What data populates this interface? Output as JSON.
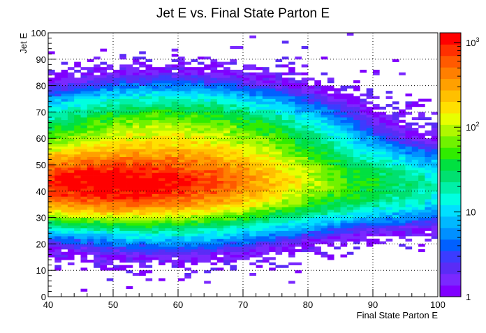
{
  "chart_data": {
    "type": "heatmap",
    "title": "Jet E vs. Final State Parton E",
    "xlabel": "Final State Parton E",
    "ylabel": "Jet E",
    "xlim": [
      40,
      100
    ],
    "ylim": [
      0,
      100
    ],
    "x_ticks": [
      "40",
      "50",
      "60",
      "70",
      "80",
      "90",
      "100"
    ],
    "y_ticks": [
      "0",
      "10",
      "20",
      "30",
      "40",
      "50",
      "60",
      "70",
      "80",
      "90",
      "100"
    ],
    "grid": true,
    "z_scale": "log",
    "zlim": [
      1,
      1300
    ],
    "colorbar": {
      "position": "right",
      "tick_labels": [
        {
          "value": 1,
          "base": "1",
          "exp": ""
        },
        {
          "value": 10,
          "base": "10",
          "exp": ""
        },
        {
          "value": 100,
          "base": "10",
          "exp": "2"
        },
        {
          "value": 1000,
          "base": "10",
          "exp": "3"
        }
      ]
    },
    "bins": {
      "x_count": 60,
      "y_count": 100
    },
    "density_components": [
      {
        "x_center": 50,
        "y_center": 43,
        "x_sigma": 12,
        "y_sigma": 5.5,
        "peak_counts": 1200
      },
      {
        "x_center": 58,
        "y_center": 50,
        "x_sigma": 12,
        "y_sigma": 11,
        "peak_counts": 220
      },
      {
        "x_center": 86,
        "y_center": 42,
        "x_sigma": 12,
        "y_sigma": 7,
        "peak_counts": 30
      }
    ]
  }
}
